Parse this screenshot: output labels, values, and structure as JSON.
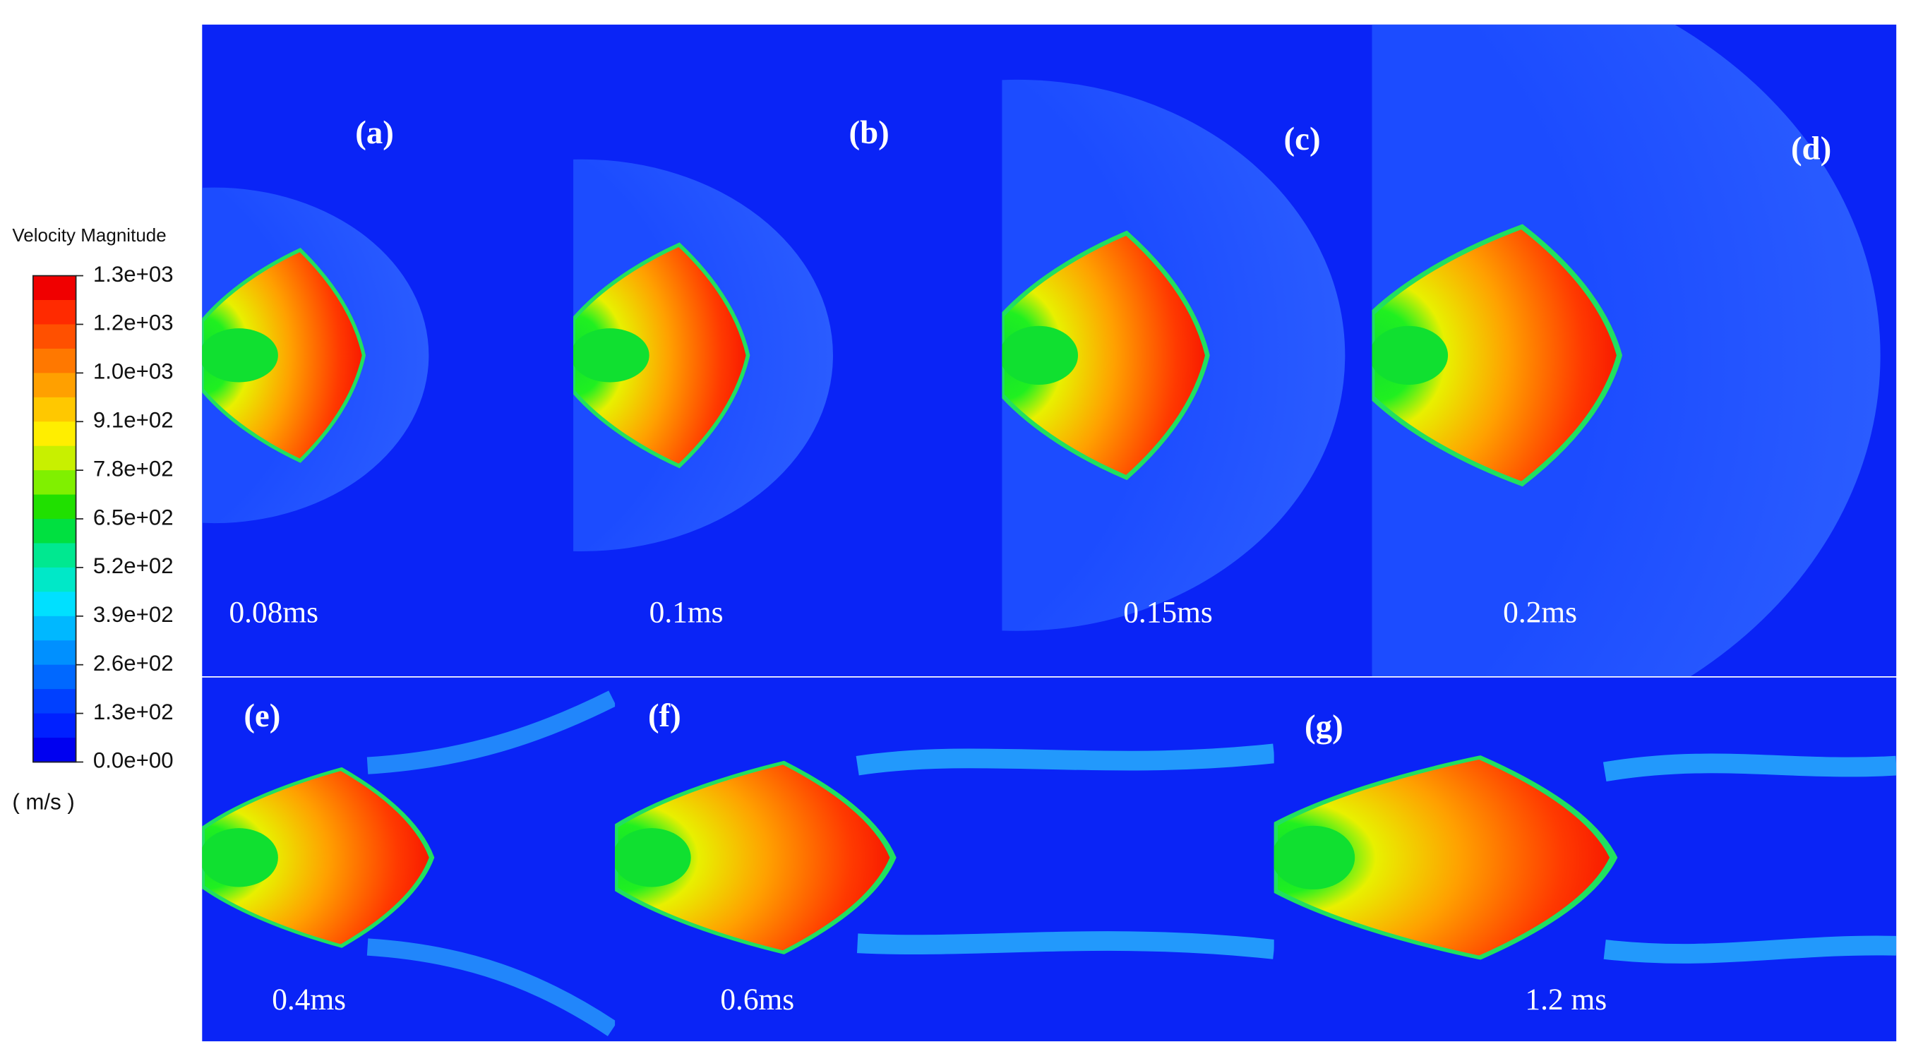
{
  "legend": {
    "title": "Velocity Magnitude",
    "labels": [
      "1.3e+03",
      "1.2e+03",
      "1.0e+03",
      "9.1e+02",
      "7.8e+02",
      "6.5e+02",
      "5.2e+02",
      "3.9e+02",
      "2.6e+02",
      "1.3e+02",
      "0.0e+00"
    ],
    "unit": "( m/s )"
  },
  "panels": [
    {
      "label": "(a)",
      "time": "0.08ms"
    },
    {
      "label": "(b)",
      "time": "0.1ms"
    },
    {
      "label": "(c)",
      "time": "0.15ms"
    },
    {
      "label": "(d)",
      "time": "0.2ms"
    },
    {
      "label": "(e)",
      "time": "0.4ms"
    },
    {
      "label": "(f)",
      "time": "0.6ms"
    },
    {
      "label": "(g)",
      "time": "1.2 ms"
    }
  ]
}
